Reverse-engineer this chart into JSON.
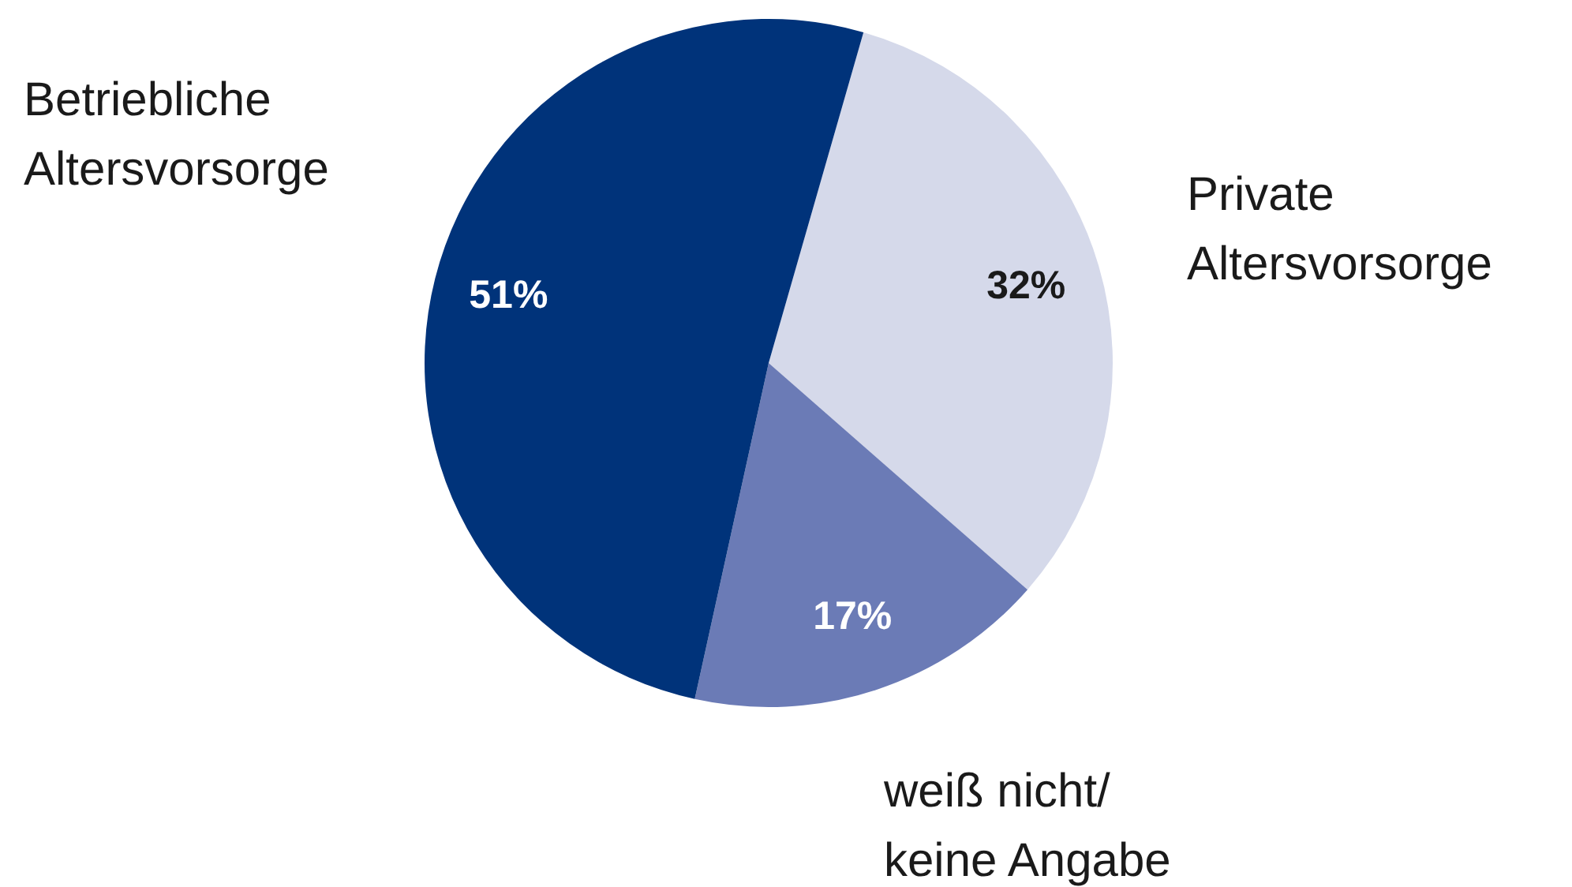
{
  "chart_data": {
    "type": "pie",
    "categories": [
      "Private\nAltersvorsorge",
      "weiß nicht/\nkeine Angabe",
      "Betriebliche\nAltersvorsorge"
    ],
    "values": [
      32,
      17,
      51
    ],
    "colors": [
      "#d5d9ea",
      "#6b7bb6",
      "#00337a"
    ],
    "value_labels": [
      "32%",
      "17%",
      "51%"
    ],
    "legend": false
  }
}
